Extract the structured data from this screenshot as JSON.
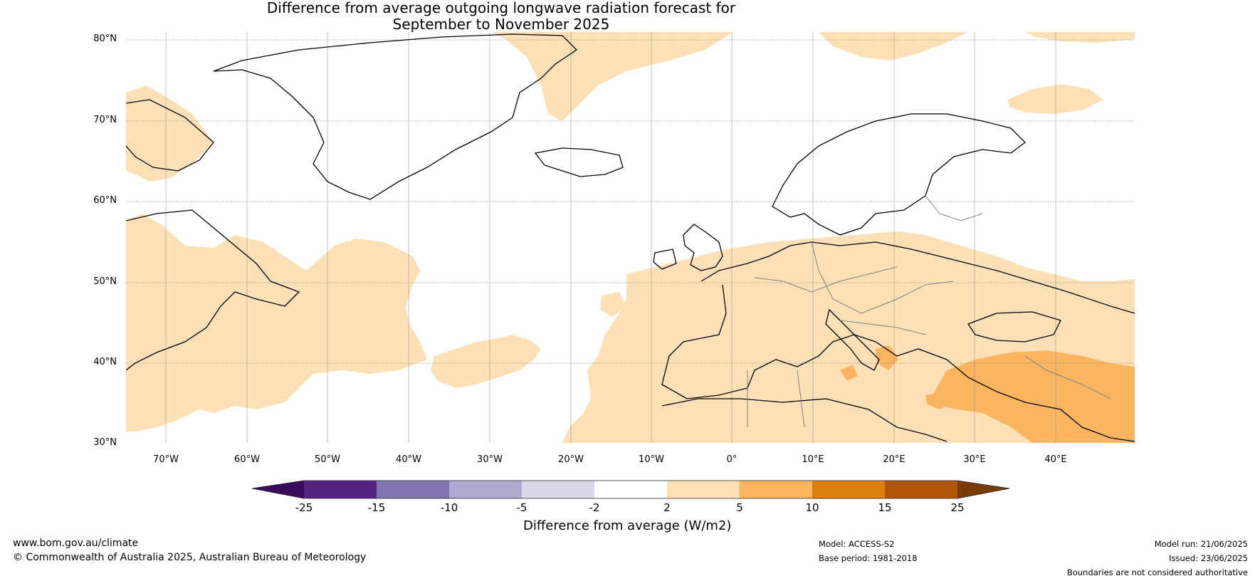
{
  "title_line1": "Difference from average outgoing longwave radiation forecast for",
  "title_line2": "September to November 2025",
  "lat_labels": [
    "80°N",
    "70°N",
    "60°N",
    "50°N",
    "40°N",
    "30°N"
  ],
  "lon_labels": [
    "70°W",
    "60°W",
    "50°W",
    "40°W",
    "30°W",
    "20°W",
    "10°W",
    "0°",
    "10°E",
    "20°E",
    "30°E",
    "40°E"
  ],
  "colorbar": {
    "ticks": [
      "-25",
      "-15",
      "-10",
      "-5",
      "-2",
      "2",
      "5",
      "10",
      "15",
      "25"
    ],
    "colors": [
      "#3a0a5c",
      "#532381",
      "#8273b1",
      "#b2a9d2",
      "#d9d8ea",
      "#ffffff",
      "#fde0b5",
      "#fbb561",
      "#de7f14",
      "#b15508",
      "#7a3b05"
    ],
    "title": "Difference from average (W/m2)"
  },
  "colors": {
    "anomaly_2_5": "#fde0b5",
    "anomaly_5_10": "#fbb561",
    "coastline": "#000000",
    "border": "#808080",
    "gridline": "#888888"
  },
  "footer": {
    "website": "www.bom.gov.au/climate",
    "copyright": "© Commonwealth of Australia 2025, Australian Bureau of Meteorology",
    "model": "Model: ACCESS-S2",
    "base_period": "Base period: 1981-2018",
    "model_run": "Model run: 21/06/2025",
    "issued": "Issued: 23/06/2025",
    "disclaimer": "Boundaries are not considered authoritative"
  }
}
